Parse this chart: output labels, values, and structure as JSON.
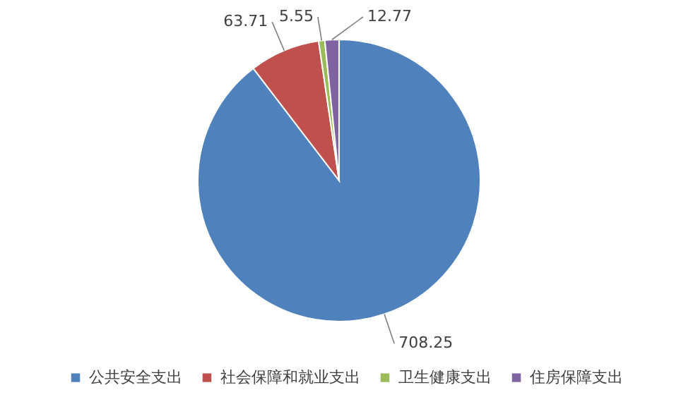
{
  "chart_data": {
    "type": "pie",
    "categories": [
      "公共安全支出",
      "社会保障和就业支出",
      "卫生健康支出",
      "住房保障支出"
    ],
    "values": [
      708.25,
      63.71,
      5.55,
      12.77
    ],
    "colors": [
      "#4f81bd",
      "#c0504d",
      "#9bbb59",
      "#8064a2"
    ],
    "data_labels": true,
    "legend": "bottom"
  }
}
